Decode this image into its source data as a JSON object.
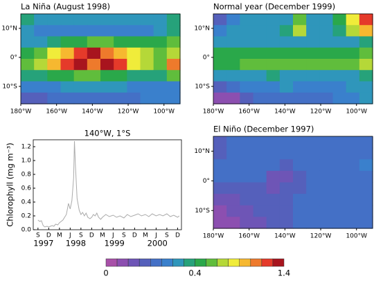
{
  "chart_data": [
    {
      "type": "map",
      "title": "La Niña (August 1998)",
      "xlim": [
        -180,
        -91
      ],
      "ylim": [
        -16,
        15
      ],
      "xticks": [
        {
          "value": -180,
          "label": "180°W"
        },
        {
          "value": -160,
          "label": "160°W"
        },
        {
          "value": -140,
          "label": "140°W"
        },
        {
          "value": -120,
          "label": "120°W"
        },
        {
          "value": -100,
          "label": "100°W"
        }
      ],
      "yticks": [
        {
          "value": 10,
          "label": "10°N"
        },
        {
          "value": 0,
          "label": "0°"
        },
        {
          "value": -10,
          "label": "10°S"
        }
      ],
      "z": [
        [
          0.35,
          0.3,
          0.3,
          0.3,
          0.3,
          0.3,
          0.3,
          0.3,
          0.3,
          0.3,
          0.3,
          0.35
        ],
        [
          0.3,
          0.25,
          0.25,
          0.25,
          0.25,
          0.25,
          0.25,
          0.25,
          0.25,
          0.25,
          0.3,
          0.35
        ],
        [
          0.3,
          0.3,
          0.35,
          0.4,
          0.45,
          0.5,
          0.5,
          0.45,
          0.4,
          0.4,
          0.4,
          0.5
        ],
        [
          0.45,
          0.55,
          0.7,
          0.8,
          1.0,
          1.2,
          0.9,
          0.8,
          0.7,
          0.6,
          0.5,
          0.6
        ],
        [
          0.5,
          0.6,
          0.8,
          1.0,
          1.3,
          0.9,
          1.2,
          1.0,
          0.7,
          0.6,
          0.5,
          0.9
        ],
        [
          0.35,
          0.35,
          0.4,
          0.45,
          0.5,
          0.5,
          0.45,
          0.4,
          0.35,
          0.35,
          0.35,
          0.5
        ],
        [
          0.25,
          0.25,
          0.25,
          0.3,
          0.3,
          0.3,
          0.3,
          0.3,
          0.25,
          0.25,
          0.25,
          0.25
        ],
        [
          0.15,
          0.15,
          0.2,
          0.2,
          0.2,
          0.2,
          0.2,
          0.2,
          0.2,
          0.25,
          0.25,
          0.25
        ]
      ]
    },
    {
      "type": "map",
      "title": "Normal year (December 1999)",
      "xlim": [
        -180,
        -91
      ],
      "ylim": [
        -16,
        15
      ],
      "xticks": [
        {
          "value": -180,
          "label": "180°W"
        },
        {
          "value": -160,
          "label": "160°W"
        },
        {
          "value": -140,
          "label": "140°W"
        },
        {
          "value": -120,
          "label": "120°W"
        },
        {
          "value": -100,
          "label": "100°W"
        }
      ],
      "yticks": [
        {
          "value": 10,
          "label": "10°N"
        },
        {
          "value": 0,
          "label": "0°"
        },
        {
          "value": -10,
          "label": "10°S"
        }
      ],
      "z": [
        [
          0.15,
          0.25,
          0.3,
          0.3,
          0.3,
          0.3,
          0.5,
          0.3,
          0.3,
          0.4,
          0.7,
          1.0
        ],
        [
          0.25,
          0.3,
          0.3,
          0.3,
          0.3,
          0.35,
          0.6,
          0.3,
          0.3,
          0.35,
          0.6,
          0.8
        ],
        [
          0.3,
          0.3,
          0.3,
          0.3,
          0.3,
          0.3,
          0.3,
          0.3,
          0.3,
          0.3,
          0.3,
          0.35
        ],
        [
          0.4,
          0.4,
          0.45,
          0.45,
          0.45,
          0.45,
          0.45,
          0.45,
          0.45,
          0.45,
          0.45,
          0.5
        ],
        [
          0.45,
          0.45,
          0.5,
          0.5,
          0.5,
          0.5,
          0.5,
          0.5,
          0.5,
          0.5,
          0.5,
          0.6
        ],
        [
          0.3,
          0.3,
          0.3,
          0.3,
          0.35,
          0.3,
          0.3,
          0.3,
          0.3,
          0.3,
          0.3,
          0.35
        ],
        [
          0.15,
          0.2,
          0.25,
          0.25,
          0.25,
          0.3,
          0.25,
          0.25,
          0.25,
          0.25,
          0.3,
          0.3
        ],
        [
          0.05,
          0.05,
          0.15,
          0.2,
          0.2,
          0.2,
          0.2,
          0.2,
          0.2,
          0.25,
          0.25,
          0.3
        ]
      ]
    },
    {
      "type": "line",
      "title": "140°W, 1°S",
      "y_label": "Chlorophyll (mg m⁻³)",
      "color": "#aaaaaa",
      "xlim": [
        1997.56,
        2001.01
      ],
      "ylim": [
        0,
        1.3
      ],
      "yticks": [
        {
          "value": 0,
          "label": "0.0"
        },
        0.2,
        0.4,
        0.6,
        0.8,
        {
          "value": 1,
          "label": "1.0"
        },
        1.2
      ],
      "xticks": [
        {
          "value": 1997.67,
          "label": "S"
        },
        {
          "value": 1997.92,
          "label": "D"
        },
        {
          "value": 1998.17,
          "label": "M"
        },
        {
          "value": 1998.42,
          "label": "J"
        },
        {
          "value": 1998.67,
          "label": "S"
        },
        {
          "value": 1998.92,
          "label": "D"
        },
        {
          "value": 1999.17,
          "label": "M"
        },
        {
          "value": 1999.42,
          "label": "J"
        },
        {
          "value": 1999.67,
          "label": "S"
        },
        {
          "value": 1999.92,
          "label": "D"
        },
        {
          "value": 2000.17,
          "label": "M"
        },
        {
          "value": 2000.42,
          "label": "J"
        },
        {
          "value": 2000.67,
          "label": "S"
        },
        {
          "value": 2000.92,
          "label": "D"
        }
      ],
      "year_labels": [
        {
          "value": 1997.8,
          "label": "1997"
        },
        {
          "value": 1998.55,
          "label": "1998"
        },
        {
          "value": 1999.45,
          "label": "1999"
        },
        {
          "value": 2000.45,
          "label": "2000"
        }
      ],
      "x": [
        1997.67,
        1997.71,
        1997.75,
        1997.79,
        1997.83,
        1997.88,
        1997.92,
        1997.96,
        1998.0,
        1998.04,
        1998.08,
        1998.13,
        1998.17,
        1998.21,
        1998.25,
        1998.29,
        1998.33,
        1998.38,
        1998.42,
        1998.46,
        1998.5,
        1998.52,
        1998.54,
        1998.58,
        1998.63,
        1998.67,
        1998.71,
        1998.75,
        1998.79,
        1998.83,
        1998.88,
        1998.92,
        1998.96,
        1999.0,
        1999.04,
        1999.08,
        1999.13,
        1999.17,
        1999.21,
        1999.25,
        1999.33,
        1999.42,
        1999.5,
        1999.58,
        1999.67,
        1999.75,
        1999.83,
        1999.92,
        2000.0,
        2000.08,
        2000.17,
        2000.25,
        2000.33,
        2000.42,
        2000.5,
        2000.58,
        2000.67,
        2000.75,
        2000.83,
        2000.92,
        2000.96
      ],
      "values": [
        0.14,
        0.12,
        0.13,
        0.06,
        0.04,
        0.05,
        0.04,
        0.05,
        0.06,
        0.05,
        0.08,
        0.07,
        0.1,
        0.12,
        0.14,
        0.18,
        0.22,
        0.38,
        0.3,
        0.42,
        0.75,
        1.28,
        0.95,
        0.45,
        0.28,
        0.22,
        0.25,
        0.2,
        0.24,
        0.18,
        0.16,
        0.18,
        0.22,
        0.2,
        0.24,
        0.18,
        0.15,
        0.18,
        0.2,
        0.22,
        0.19,
        0.21,
        0.18,
        0.2,
        0.17,
        0.22,
        0.19,
        0.21,
        0.23,
        0.2,
        0.22,
        0.19,
        0.23,
        0.2,
        0.22,
        0.2,
        0.23,
        0.19,
        0.21,
        0.18,
        0.2
      ]
    },
    {
      "type": "map",
      "title": "El Niño (December 1997)",
      "xlim": [
        -180,
        -91
      ],
      "ylim": [
        -16,
        15
      ],
      "xticks": [
        {
          "value": -180,
          "label": "180°W"
        },
        {
          "value": -160,
          "label": "160°W"
        },
        {
          "value": -140,
          "label": "140°W"
        },
        {
          "value": -120,
          "label": "120°W"
        },
        {
          "value": -100,
          "label": "100°W"
        }
      ],
      "yticks": [
        {
          "value": 10,
          "label": "10°N"
        },
        {
          "value": 0,
          "label": "0°"
        },
        {
          "value": -10,
          "label": "10°S"
        }
      ],
      "z": [
        [
          0.15,
          0.2,
          0.2,
          0.2,
          0.2,
          0.2,
          0.2,
          0.2,
          0.2,
          0.2,
          0.2,
          0.2
        ],
        [
          0.15,
          0.2,
          0.2,
          0.2,
          0.2,
          0.2,
          0.2,
          0.2,
          0.2,
          0.2,
          0.2,
          0.2
        ],
        [
          0.2,
          0.2,
          0.2,
          0.2,
          0.2,
          0.15,
          0.2,
          0.2,
          0.2,
          0.2,
          0.2,
          0.25
        ],
        [
          0.2,
          0.2,
          0.2,
          0.2,
          0.1,
          0.1,
          0.15,
          0.2,
          0.2,
          0.2,
          0.2,
          0.2
        ],
        [
          0.15,
          0.15,
          0.15,
          0.15,
          0.1,
          0.15,
          0.15,
          0.2,
          0.2,
          0.2,
          0.2,
          0.2
        ],
        [
          0.1,
          0.1,
          0.15,
          0.15,
          0.15,
          0.15,
          0.2,
          0.2,
          0.2,
          0.2,
          0.2,
          0.2
        ],
        [
          0.05,
          0.1,
          0.1,
          0.15,
          0.15,
          0.15,
          0.2,
          0.2,
          0.2,
          0.2,
          0.2,
          0.2
        ],
        [
          0.05,
          0.05,
          0.1,
          0.1,
          0.15,
          0.15,
          0.2,
          0.2,
          0.2,
          0.2,
          0.2,
          0.2
        ]
      ]
    },
    {
      "type": "colorbar",
      "levels": [
        0,
        0.05,
        0.1,
        0.15,
        0.2,
        0.25,
        0.3,
        0.35,
        0.4,
        0.5,
        0.6,
        0.7,
        0.8,
        0.9,
        1.0,
        1.2,
        1.4
      ],
      "colors": [
        "#a850a8",
        "#8c4fb0",
        "#6e55b6",
        "#5560bb",
        "#4470c6",
        "#3a80cc",
        "#2f96bb",
        "#26a27a",
        "#2aa84a",
        "#60bd3c",
        "#b5d838",
        "#f0ec3a",
        "#f6b830",
        "#ee7a2c",
        "#e53a2a",
        "#a8141e"
      ],
      "ticks": [
        0,
        0.4,
        1.4
      ]
    }
  ]
}
